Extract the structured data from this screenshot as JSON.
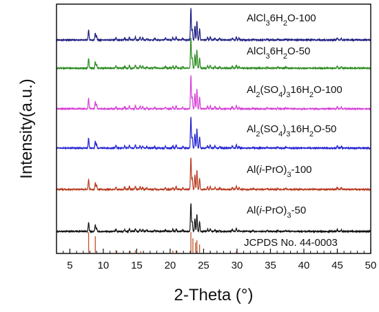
{
  "chart_data": {
    "type": "line",
    "xlabel": "2-Theta (°)",
    "ylabel": "Intensity(a.u.)",
    "xlim": [
      3,
      50
    ],
    "x_ticks": [
      5,
      10,
      15,
      20,
      25,
      30,
      35,
      40,
      45,
      50
    ],
    "y_ticks_shown": false,
    "grid": false,
    "legend": "labels above each trace, right side",
    "peaks_2theta": [
      {
        "pos": 7.8,
        "h": 0.32
      },
      {
        "pos": 8.8,
        "h": 0.22
      },
      {
        "pos": 9.0,
        "h": 0.13
      },
      {
        "pos": 11.9,
        "h": 0.08
      },
      {
        "pos": 13.2,
        "h": 0.07
      },
      {
        "pos": 13.9,
        "h": 0.09
      },
      {
        "pos": 14.8,
        "h": 0.1
      },
      {
        "pos": 15.5,
        "h": 0.08
      },
      {
        "pos": 15.9,
        "h": 0.07
      },
      {
        "pos": 16.5,
        "h": 0.05
      },
      {
        "pos": 17.7,
        "h": 0.05
      },
      {
        "pos": 19.3,
        "h": 0.06
      },
      {
        "pos": 20.4,
        "h": 0.07
      },
      {
        "pos": 20.9,
        "h": 0.09
      },
      {
        "pos": 21.9,
        "h": 0.05
      },
      {
        "pos": 23.1,
        "h": 1.0
      },
      {
        "pos": 23.3,
        "h": 0.35
      },
      {
        "pos": 23.7,
        "h": 0.45
      },
      {
        "pos": 24.0,
        "h": 0.6
      },
      {
        "pos": 24.4,
        "h": 0.35
      },
      {
        "pos": 25.6,
        "h": 0.08
      },
      {
        "pos": 26.0,
        "h": 0.1
      },
      {
        "pos": 26.7,
        "h": 0.07
      },
      {
        "pos": 27.4,
        "h": 0.05
      },
      {
        "pos": 29.3,
        "h": 0.07
      },
      {
        "pos": 29.9,
        "h": 0.1
      },
      {
        "pos": 30.3,
        "h": 0.05
      },
      {
        "pos": 32.4,
        "h": 0.03
      },
      {
        "pos": 34.5,
        "h": 0.03
      },
      {
        "pos": 36.1,
        "h": 0.03
      },
      {
        "pos": 37.3,
        "h": 0.03
      },
      {
        "pos": 45.0,
        "h": 0.07
      },
      {
        "pos": 45.6,
        "h": 0.05
      }
    ],
    "series": [
      {
        "name": "AlCl6H2O-100",
        "label_parts": [
          [
            "AlCl",
            ""
          ],
          [
            "3",
            "sub"
          ],
          [
            "6H",
            ""
          ],
          [
            "2",
            "sub"
          ],
          [
            "O-100",
            ""
          ]
        ],
        "color": "#1a1a80",
        "peak_scale": 1.0
      },
      {
        "name": "AlCl6H2O-50",
        "label_parts": [
          [
            "AlCl",
            ""
          ],
          [
            "3",
            "sub"
          ],
          [
            "6H",
            ""
          ],
          [
            "2",
            "sub"
          ],
          [
            "O-50",
            ""
          ]
        ],
        "color": "#2a8a1e",
        "peak_scale": 0.95
      },
      {
        "name": "Al2(SO4)316H2O-100",
        "label_parts": [
          [
            "Al",
            ""
          ],
          [
            "2",
            "sub"
          ],
          [
            "(SO",
            ""
          ],
          [
            "4",
            "sub"
          ],
          [
            ")",
            ""
          ],
          [
            "3",
            "sub"
          ],
          [
            "16H",
            ""
          ],
          [
            "2",
            "sub"
          ],
          [
            "O-100",
            ""
          ]
        ],
        "color": "#d63fd6",
        "peak_scale": 1.05
      },
      {
        "name": "Al2(SO4)316H2O-50",
        "label_parts": [
          [
            "Al",
            ""
          ],
          [
            "2",
            "sub"
          ],
          [
            "(SO",
            ""
          ],
          [
            "4",
            "sub"
          ],
          [
            ")",
            ""
          ],
          [
            "3",
            "sub"
          ],
          [
            "16H",
            ""
          ],
          [
            "2",
            "sub"
          ],
          [
            "O-50",
            ""
          ]
        ],
        "color": "#2020d0",
        "peak_scale": 1.0
      },
      {
        "name": "Al(i-PrO)3-100",
        "label_parts": [
          [
            "Al(",
            ""
          ],
          [
            "i",
            "italic"
          ],
          [
            "-PrO)",
            ""
          ],
          [
            "3",
            "sub"
          ],
          [
            "-100",
            ""
          ]
        ],
        "color": "#b83a20",
        "peak_scale": 1.0
      },
      {
        "name": "Al(i-PrO)3-50",
        "label_parts": [
          [
            "Al(",
            ""
          ],
          [
            "i",
            "italic"
          ],
          [
            "-PrO)",
            ""
          ],
          [
            "3",
            "sub"
          ],
          [
            "-50",
            ""
          ]
        ],
        "color": "#111111",
        "peak_scale": 0.9
      }
    ],
    "reference": {
      "name": "JCPDS No. 44-0003",
      "label_parts": [
        [
          "JCPDS No. 44-0003",
          ""
        ]
      ],
      "color": "#c0502a",
      "sticks": [
        {
          "pos": 7.8,
          "h": 1.0
        },
        {
          "pos": 8.8,
          "h": 0.8
        },
        {
          "pos": 11.9,
          "h": 0.12
        },
        {
          "pos": 13.9,
          "h": 0.1
        },
        {
          "pos": 14.8,
          "h": 0.12
        },
        {
          "pos": 15.6,
          "h": 0.08
        },
        {
          "pos": 20.4,
          "h": 0.1
        },
        {
          "pos": 20.9,
          "h": 0.12
        },
        {
          "pos": 23.1,
          "h": 1.0
        },
        {
          "pos": 23.4,
          "h": 0.7
        },
        {
          "pos": 23.8,
          "h": 0.5
        },
        {
          "pos": 24.0,
          "h": 0.6
        },
        {
          "pos": 24.4,
          "h": 0.4
        },
        {
          "pos": 26.0,
          "h": 0.1
        },
        {
          "pos": 29.9,
          "h": 0.08
        },
        {
          "pos": 45.0,
          "h": 0.08
        }
      ]
    }
  }
}
